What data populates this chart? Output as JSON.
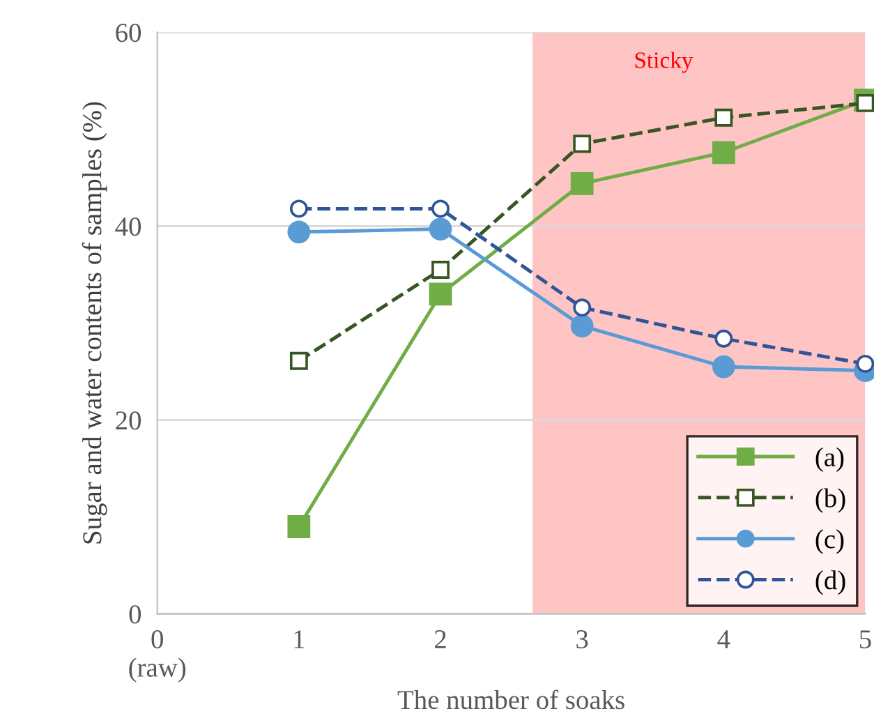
{
  "chart_data": {
    "type": "line",
    "xlabel": "The number of soaks",
    "ylabel": "Sugar and water contents of samples (%)",
    "x": [
      1,
      2,
      3,
      4,
      5
    ],
    "xlim": [
      0,
      5
    ],
    "xticks": [
      {
        "value": 0,
        "label": "0\n(raw)"
      },
      1,
      2,
      3,
      4,
      5
    ],
    "ylim": [
      0,
      60
    ],
    "yticks": [
      0,
      20,
      40,
      60
    ],
    "grid": "y",
    "legend": "bottom right",
    "bands": [
      {
        "axis": "x",
        "from": 2.65,
        "to": 5,
        "label": "Sticky",
        "color": "#ff9f9f"
      }
    ],
    "series": [
      {
        "name": "(a)",
        "color": "#70ad47",
        "marker": "square",
        "line_style": "solid",
        "values": [
          9,
          33,
          44.4,
          47.6,
          53
        ]
      },
      {
        "name": "(b)",
        "color": "#375623",
        "marker": "square",
        "line_style": "dashed",
        "values": [
          26.1,
          35.5,
          48.5,
          51.2,
          52.7
        ]
      },
      {
        "name": "(c)",
        "color": "#5b9bd5",
        "marker": "circle",
        "line_style": "solid",
        "values": [
          39.4,
          39.7,
          29.7,
          25.5,
          25.1
        ]
      },
      {
        "name": "(d)",
        "color": "#2f5597",
        "marker": "circle",
        "line_style": "dashed",
        "values": [
          41.8,
          41.8,
          31.6,
          28.4,
          25.8
        ]
      }
    ]
  }
}
